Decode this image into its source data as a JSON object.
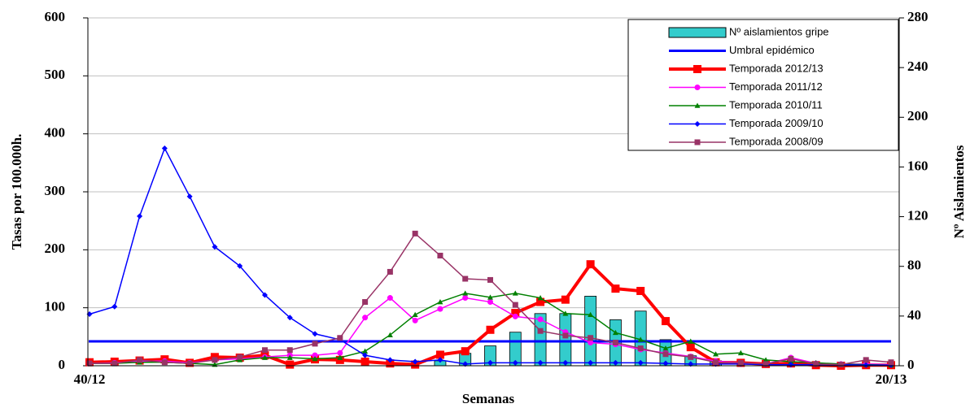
{
  "chart_data": {
    "type": "combo",
    "xlabel": "Semanas",
    "ylabel": "Tasas por 100.000h.",
    "y2label": "Nº Aislamientos",
    "categories": [
      "40/12",
      null,
      null,
      null,
      null,
      null,
      null,
      null,
      null,
      null,
      null,
      null,
      null,
      null,
      null,
      null,
      null,
      null,
      null,
      null,
      null,
      null,
      null,
      null,
      null,
      null,
      null,
      null,
      null,
      null,
      null,
      null,
      "20/13"
    ],
    "ylim": [
      0,
      600
    ],
    "yticks": [
      0,
      100,
      200,
      300,
      400,
      500,
      600
    ],
    "y2lim": [
      0,
      280
    ],
    "y2ticks": [
      0,
      40,
      80,
      120,
      160,
      200,
      240,
      280
    ],
    "grid": true,
    "legend": "upper right",
    "series": [
      {
        "name": "Nº aislamientos gripe",
        "kind": "bar",
        "axis": "y2",
        "color": "#33cccc",
        "values": [
          0,
          0,
          0,
          0,
          0,
          0,
          0,
          0,
          0,
          0,
          0,
          0,
          0,
          0,
          4,
          10,
          16,
          27,
          42,
          42,
          56,
          37,
          44,
          21,
          8,
          4,
          0,
          0,
          0,
          0,
          0,
          0,
          0
        ]
      },
      {
        "name": "Umbral epidémico",
        "kind": "hline",
        "color": "#0000ff",
        "value": 42
      },
      {
        "name": "Temporada 2012/13",
        "kind": "line",
        "marker": "square",
        "width": 4,
        "color": "#ff0000",
        "values": [
          6,
          7,
          9,
          11,
          5,
          15,
          14,
          18,
          2,
          11,
          10,
          7,
          4,
          2,
          19,
          25,
          62,
          91,
          110,
          114,
          175,
          133,
          129,
          77,
          32,
          6,
          5,
          3,
          4,
          1,
          0,
          1,
          1
        ]
      },
      {
        "name": "Temporada 2011/12",
        "kind": "line",
        "marker": "circle",
        "width": 1.5,
        "color": "#ff00ff",
        "values": [
          4,
          5,
          8,
          8,
          5,
          10,
          12,
          15,
          18,
          18,
          22,
          83,
          117,
          78,
          98,
          117,
          110,
          85,
          80,
          58,
          40,
          37,
          28,
          22,
          16,
          8,
          5,
          3,
          14,
          4,
          3,
          3,
          2
        ]
      },
      {
        "name": "Temporada 2010/11",
        "kind": "line",
        "marker": "triangle",
        "width": 1.5,
        "color": "#008000",
        "values": [
          4,
          4,
          6,
          6,
          4,
          2,
          10,
          14,
          14,
          12,
          14,
          25,
          53,
          88,
          110,
          125,
          118,
          125,
          117,
          90,
          88,
          57,
          45,
          30,
          42,
          20,
          22,
          10,
          7,
          5,
          3,
          2,
          1
        ]
      },
      {
        "name": "Temporada 2009/10",
        "kind": "line",
        "marker": "diamond",
        "width": 1.5,
        "color": "#0000ff",
        "values": [
          89,
          102,
          258,
          375,
          292,
          205,
          172,
          122,
          83,
          55,
          45,
          18,
          10,
          7,
          10,
          3,
          5,
          5,
          5,
          5,
          5,
          5,
          5,
          4,
          3,
          3,
          3,
          2,
          2,
          2,
          2,
          1,
          1
        ]
      },
      {
        "name": "Temporada 2008/09",
        "kind": "line",
        "marker": "square",
        "width": 1.5,
        "color": "#993366",
        "values": [
          4,
          4,
          10,
          6,
          4,
          10,
          15,
          27,
          27,
          38,
          48,
          110,
          162,
          228,
          190,
          150,
          148,
          105,
          60,
          52,
          48,
          40,
          30,
          20,
          15,
          6,
          5,
          3,
          12,
          3,
          2,
          10,
          6
        ]
      }
    ]
  }
}
